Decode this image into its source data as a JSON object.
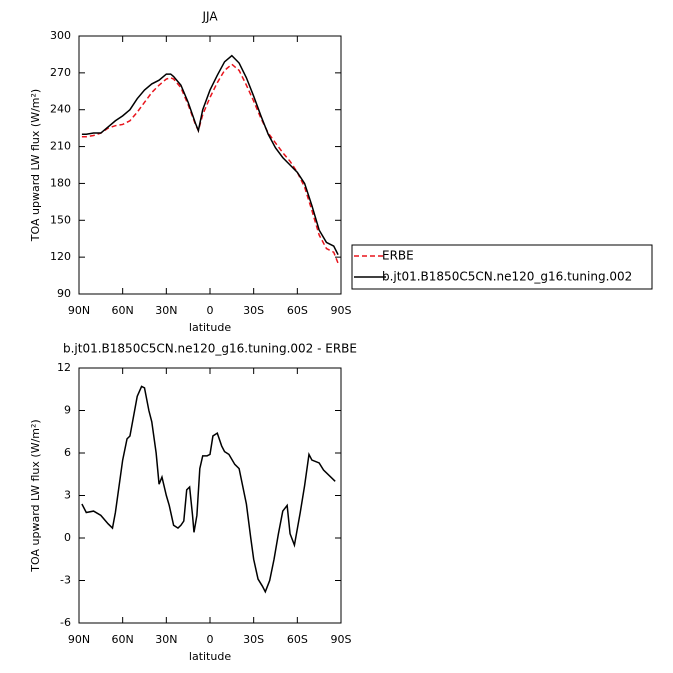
{
  "chart_data": [
    {
      "type": "line",
      "title": "JJA",
      "xlabel": "latitude",
      "ylabel": "TOA upward LW flux (W/m²)",
      "x": [
        88,
        85,
        80,
        75,
        70,
        65,
        60,
        55,
        50,
        45,
        40,
        35,
        30,
        27,
        25,
        20,
        15,
        10,
        8,
        5,
        0,
        -5,
        -10,
        -15,
        -20,
        -25,
        -30,
        -35,
        -40,
        -45,
        -50,
        -55,
        -60,
        -65,
        -70,
        -75,
        -80,
        -85,
        -88
      ],
      "series": [
        {
          "name": "ERBE",
          "color": "#e8141c",
          "linestyle": "dashed",
          "values": [
            218,
            218,
            219,
            221,
            225,
            227,
            228,
            231,
            238,
            246,
            254,
            260,
            265,
            266,
            265,
            258,
            244,
            228,
            223,
            236,
            250,
            262,
            272,
            277,
            272,
            260,
            247,
            233,
            221,
            213,
            205,
            198,
            189,
            177,
            158,
            138,
            127,
            124,
            115
          ]
        },
        {
          "name": "b.jt01.B1850C5CN.ne120_g16.tuning.002",
          "color": "#000000",
          "linestyle": "solid",
          "values": [
            220,
            220,
            221,
            221,
            226,
            231,
            235,
            240,
            249,
            256,
            261,
            264,
            269,
            269,
            267,
            260,
            246,
            229,
            223,
            240,
            256,
            268,
            279,
            284,
            278,
            266,
            251,
            235,
            220,
            209,
            201,
            195,
            189,
            180,
            162,
            142,
            132,
            129,
            122
          ]
        }
      ],
      "xlim": [
        90,
        -90
      ],
      "xticks": [
        {
          "value": 90,
          "label": "90N"
        },
        {
          "value": 60,
          "label": "60N"
        },
        {
          "value": 30,
          "label": "30N"
        },
        0,
        {
          "value": -30,
          "label": "30S"
        },
        {
          "value": -60,
          "label": "60S"
        },
        {
          "value": -90,
          "label": "90S"
        }
      ],
      "ylim": [
        90,
        300
      ],
      "yticks": [
        90,
        120,
        150,
        180,
        210,
        240,
        270,
        300
      ],
      "legend": "right"
    },
    {
      "type": "line",
      "title": "b.jt01.B1850C5CN.ne120_g16.tuning.002 - ERBE",
      "xlabel": "latitude",
      "ylabel": "TOA upward LW flux (W/m²)",
      "x": [
        88,
        85,
        80,
        75,
        70,
        67,
        65,
        60,
        57,
        55,
        50,
        47,
        45,
        42,
        40,
        37,
        35,
        33,
        30,
        28,
        25,
        22,
        20,
        18,
        16,
        14,
        12,
        11,
        9,
        7,
        5,
        2,
        0,
        -2,
        -5,
        -8,
        -10,
        -13,
        -17,
        -20,
        -25,
        -28,
        -30,
        -33,
        -36,
        -38,
        -41,
        -44,
        -47,
        -50,
        -53,
        -55,
        -58,
        -62,
        -65,
        -68,
        -70,
        -75,
        -78,
        -86
      ],
      "values": [
        2.4,
        1.8,
        1.9,
        1.6,
        1.0,
        0.7,
        1.8,
        5.5,
        7.0,
        7.2,
        10.0,
        10.7,
        10.6,
        9.0,
        8.2,
        6.0,
        3.8,
        4.3,
        3.0,
        2.3,
        0.9,
        0.7,
        0.9,
        1.2,
        3.4,
        3.6,
        1.6,
        0.4,
        1.6,
        4.9,
        5.8,
        5.8,
        5.9,
        7.2,
        7.4,
        6.5,
        6.1,
        5.9,
        5.2,
        4.9,
        2.4,
        0,
        -1.5,
        -2.9,
        -3.4,
        -3.8,
        -3.0,
        -1.5,
        0.3,
        1.9,
        2.3,
        0.3,
        -0.5,
        1.8,
        3.7,
        5.9,
        5.5,
        5.3,
        4.8,
        4.0
      ],
      "color": "#000000",
      "xlim": [
        90,
        -90
      ],
      "xticks": [
        {
          "value": 90,
          "label": "90N"
        },
        {
          "value": 60,
          "label": "60N"
        },
        {
          "value": 30,
          "label": "30N"
        },
        0,
        {
          "value": -30,
          "label": "30S"
        },
        {
          "value": -60,
          "label": "60S"
        },
        {
          "value": -90,
          "label": "90S"
        }
      ],
      "ylim": [
        -6,
        12
      ],
      "yticks": [
        -6,
        -3,
        0,
        3,
        6,
        9,
        12
      ]
    }
  ]
}
